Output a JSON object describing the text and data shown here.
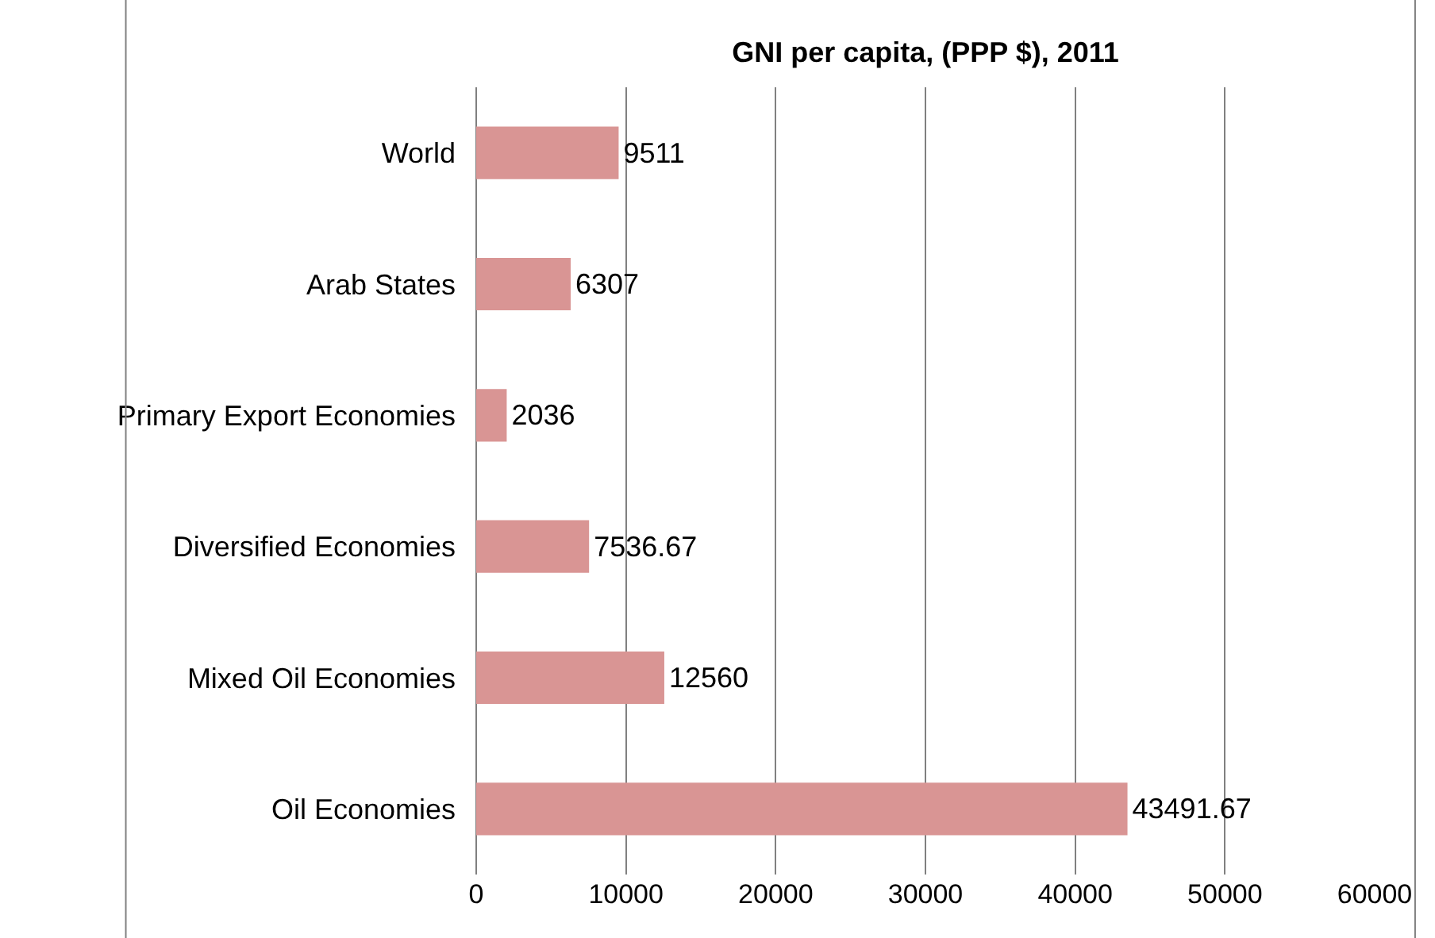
{
  "chart_data": {
    "type": "bar",
    "orientation": "horizontal",
    "title": "GNI per capita, (PPP $), 2011",
    "categories": [
      "World",
      "Arab States",
      "Primary Export Economies",
      "Diversified Economies",
      "Mixed Oil Economies",
      "Oil Economies"
    ],
    "values": [
      9511,
      6307,
      2036,
      7536.67,
      12560,
      43491.67
    ],
    "color": "#d99594",
    "xlim": [
      0,
      60000
    ],
    "xticks": [
      0,
      10000,
      20000,
      30000,
      40000,
      50000,
      60000
    ],
    "grid": "x",
    "data_labels": true
  }
}
